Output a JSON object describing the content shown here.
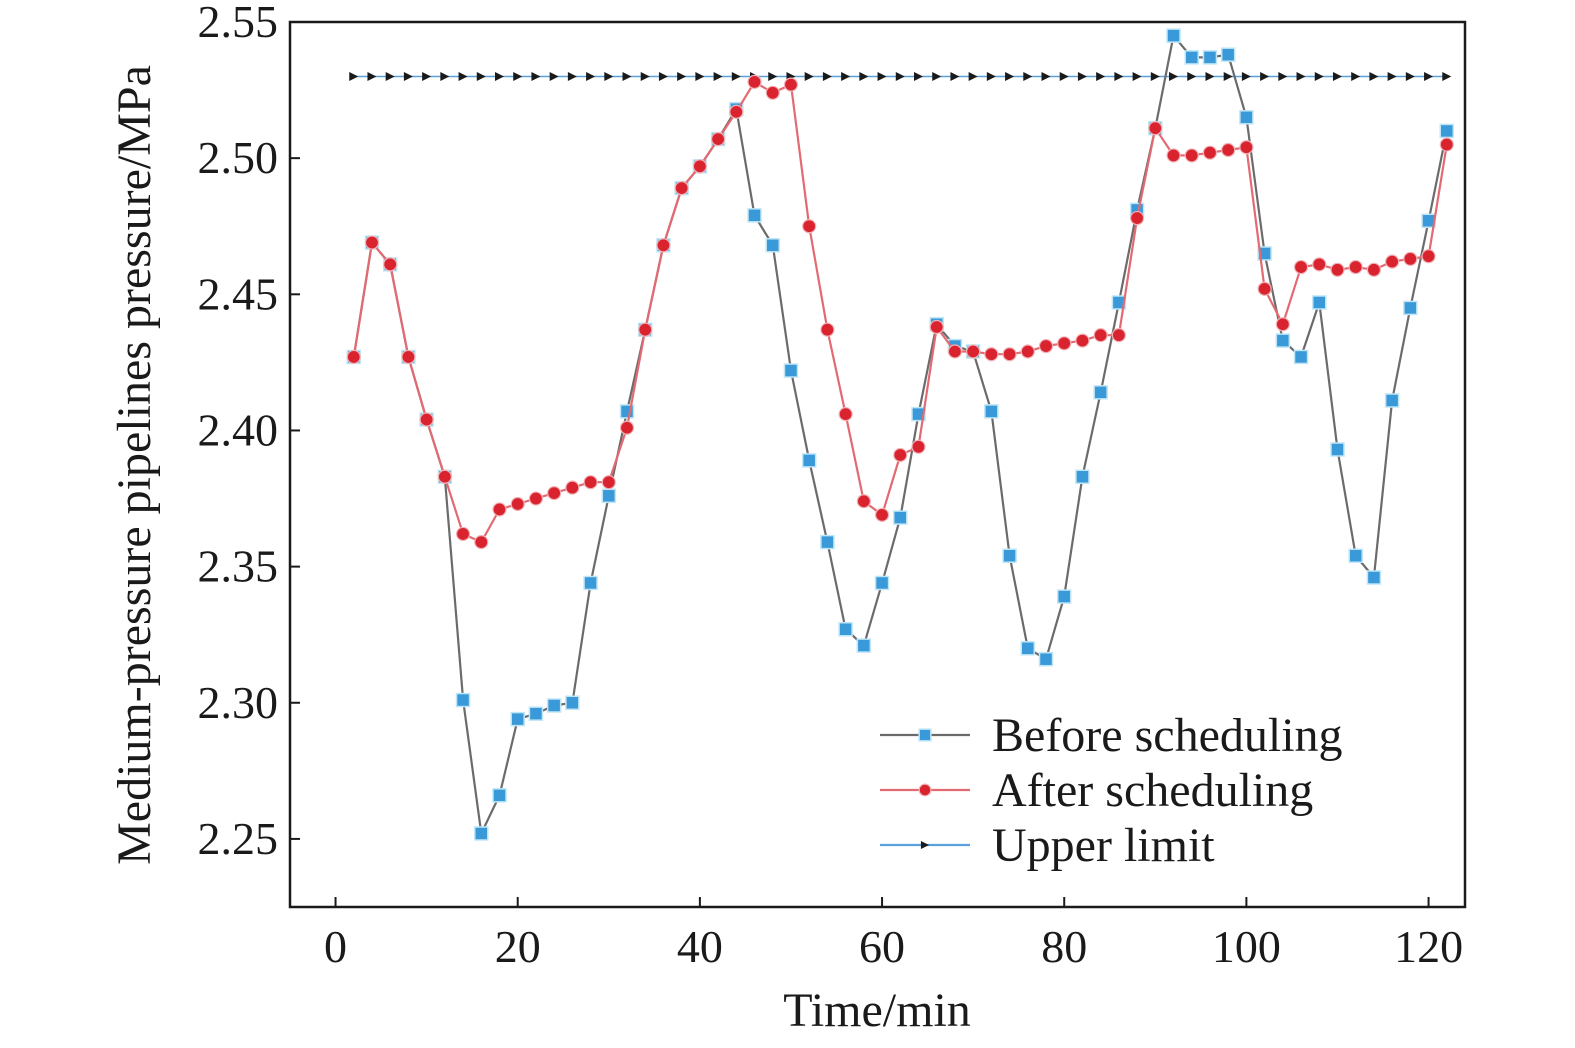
{
  "chart_data": {
    "type": "line",
    "xlabel": "Time/min",
    "ylabel": "Medium-pressure pipelines pressure/MPa",
    "xlim": [
      -5,
      124
    ],
    "ylim": [
      2.225,
      2.55
    ],
    "x_ticks": [
      0,
      20,
      40,
      60,
      80,
      100,
      120
    ],
    "x_tick_labels": [
      "0",
      "20",
      "40",
      "60",
      "80",
      "100",
      "120"
    ],
    "y_ticks": [
      2.25,
      2.3,
      2.35,
      2.4,
      2.45,
      2.5,
      2.55
    ],
    "y_tick_labels": [
      "2.25",
      "2.30",
      "2.35",
      "2.40",
      "2.45",
      "2.50",
      "2.55"
    ],
    "legend_position": "bottom-right",
    "x": [
      2,
      4,
      6,
      8,
      10,
      12,
      14,
      16,
      18,
      20,
      22,
      24,
      26,
      28,
      30,
      32,
      34,
      36,
      38,
      40,
      42,
      44,
      46,
      48,
      50,
      52,
      54,
      56,
      58,
      60,
      62,
      64,
      66,
      68,
      70,
      72,
      74,
      76,
      78,
      80,
      82,
      84,
      86,
      88,
      90,
      92,
      94,
      96,
      98,
      100,
      102,
      104,
      106,
      108,
      110,
      112,
      114,
      116,
      118,
      120,
      122
    ],
    "series": [
      {
        "name": "Before scheduling",
        "color": "#3a9ad9",
        "line_color": "#6b6b6b",
        "marker": "square",
        "values": [
          2.427,
          2.469,
          2.461,
          2.427,
          2.404,
          2.383,
          2.301,
          2.252,
          2.266,
          2.294,
          2.296,
          2.299,
          2.3,
          2.344,
          2.376,
          2.407,
          2.437,
          2.468,
          2.489,
          2.497,
          2.507,
          2.518,
          2.479,
          2.468,
          2.422,
          2.389,
          2.359,
          2.327,
          2.321,
          2.344,
          2.368,
          2.406,
          2.439,
          2.431,
          2.429,
          2.407,
          2.354,
          2.32,
          2.316,
          2.339,
          2.383,
          2.414,
          2.447,
          2.481,
          2.511,
          2.545,
          2.537,
          2.537,
          2.538,
          2.515,
          2.465,
          2.433,
          2.427,
          2.447,
          2.393,
          2.354,
          2.346,
          2.411,
          2.445,
          2.477,
          2.51
        ]
      },
      {
        "name": "After scheduling",
        "color": "#d9242f",
        "line_color": "#e36a72",
        "marker": "circle",
        "values": [
          2.427,
          2.469,
          2.461,
          2.427,
          2.404,
          2.383,
          2.362,
          2.359,
          2.371,
          2.373,
          2.375,
          2.377,
          2.379,
          2.381,
          2.381,
          2.401,
          2.437,
          2.468,
          2.489,
          2.497,
          2.507,
          2.517,
          2.528,
          2.524,
          2.527,
          2.475,
          2.437,
          2.406,
          2.374,
          2.369,
          2.391,
          2.394,
          2.438,
          2.429,
          2.429,
          2.428,
          2.428,
          2.429,
          2.431,
          2.432,
          2.433,
          2.435,
          2.435,
          2.478,
          2.511,
          2.501,
          2.501,
          2.502,
          2.503,
          2.504,
          2.452,
          2.439,
          2.46,
          2.461,
          2.459,
          2.46,
          2.459,
          2.462,
          2.463,
          2.464,
          2.505
        ]
      },
      {
        "name": "Upper limit",
        "color": "#1a1a1a",
        "line_color": "#5aa0dc",
        "marker": "triangle-right",
        "values": [
          2.53,
          2.53,
          2.53,
          2.53,
          2.53,
          2.53,
          2.53,
          2.53,
          2.53,
          2.53,
          2.53,
          2.53,
          2.53,
          2.53,
          2.53,
          2.53,
          2.53,
          2.53,
          2.53,
          2.53,
          2.53,
          2.53,
          2.53,
          2.53,
          2.53,
          2.53,
          2.53,
          2.53,
          2.53,
          2.53,
          2.53,
          2.53,
          2.53,
          2.53,
          2.53,
          2.53,
          2.53,
          2.53,
          2.53,
          2.53,
          2.53,
          2.53,
          2.53,
          2.53,
          2.53,
          2.53,
          2.53,
          2.53,
          2.53,
          2.53,
          2.53,
          2.53,
          2.53,
          2.53,
          2.53,
          2.53,
          2.53,
          2.53,
          2.53,
          2.53,
          2.53
        ]
      }
    ]
  }
}
